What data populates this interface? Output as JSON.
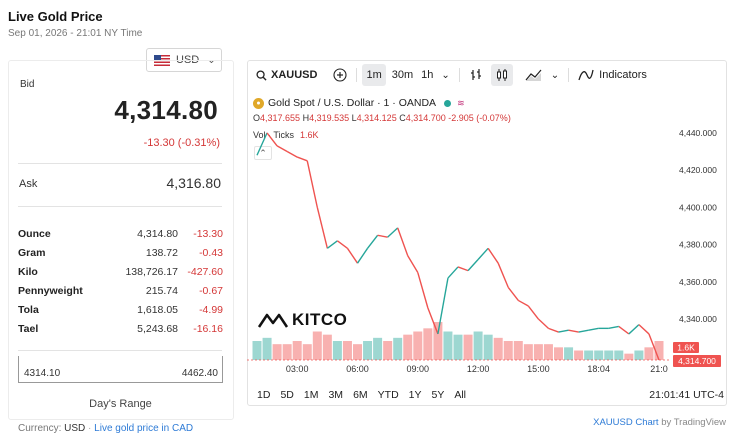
{
  "header": {
    "title": "Live Gold Price",
    "datetime": "Sep 01, 2026 - 21:01 NY Time",
    "currency": "USD"
  },
  "quote": {
    "bid_label": "Bid",
    "bid": "4,314.80",
    "change": "-13.30 (-0.31%)",
    "ask_label": "Ask",
    "ask": "4,316.80"
  },
  "units": [
    {
      "name": "Ounce",
      "price": "4,314.80",
      "change": "-13.30"
    },
    {
      "name": "Gram",
      "price": "138.72",
      "change": "-0.43"
    },
    {
      "name": "Kilo",
      "price": "138,726.17",
      "change": "-427.60"
    },
    {
      "name": "Pennyweight",
      "price": "215.74",
      "change": "-0.67"
    },
    {
      "name": "Tola",
      "price": "1,618.05",
      "change": "-4.99"
    },
    {
      "name": "Tael",
      "price": "5,243.68",
      "change": "-16.16"
    }
  ],
  "days_range": {
    "low": "4314.10",
    "high": "4462.40",
    "label": "Day's Range"
  },
  "footer": {
    "currency_label": "Currency:",
    "currency": "USD",
    "cad_link": "Live gold price in CAD"
  },
  "toolbar": {
    "symbol": "XAUUSD",
    "intervals": [
      "1m",
      "30m",
      "1h"
    ],
    "indicators": "Indicators"
  },
  "legend": {
    "title": "Gold Spot / U.S. Dollar · 1 · OANDA",
    "badge": "≋",
    "open_k": "O",
    "open": "4,317.655",
    "high_k": "H",
    "high": "4,319.535",
    "low_k": "L",
    "low": "4,314.125",
    "close_k": "C",
    "close": "4,314.700",
    "chg": "-2.905 (-0.07%)",
    "vol_label": "Vol · Ticks",
    "vol": "1.6K"
  },
  "colors": {
    "up": "#26a69a",
    "down": "#ef5350",
    "accent": "#d43737",
    "link": "#2e7bd6"
  },
  "chart_data": {
    "type": "line",
    "symbol": "XAUUSD",
    "yaxis_ticks": [
      "4,440.000",
      "4,420.000",
      "4,400.000",
      "4,380.000",
      "4,360.000",
      "4,340.000"
    ],
    "xaxis_ticks": [
      "03:00",
      "06:00",
      "09:00",
      "12:00",
      "15:00",
      "18:04",
      "21:0"
    ],
    "ylim": [
      4318,
      4448
    ],
    "price_label": "4,314.700",
    "volume_label": "1.6K",
    "x": [
      "01:00",
      "01:30",
      "02:00",
      "02:30",
      "03:00",
      "03:30",
      "04:00",
      "04:30",
      "05:00",
      "05:30",
      "06:00",
      "06:30",
      "07:00",
      "07:30",
      "08:00",
      "08:30",
      "09:00",
      "09:30",
      "10:00",
      "10:30",
      "11:00",
      "11:30",
      "12:00",
      "12:30",
      "13:00",
      "13:30",
      "14:00",
      "14:30",
      "15:00",
      "15:30",
      "16:00",
      "16:30",
      "17:00",
      "17:30",
      "18:00",
      "18:30",
      "19:00",
      "19:30",
      "20:00",
      "20:30",
      "21:00"
    ],
    "series": [
      {
        "values": [
          4428,
          4440,
          4433,
          4430,
          4427,
          4425,
          4400,
          4378,
          4382,
          4378,
          4370,
          4378,
          4385,
          4384,
          4389,
          4374,
          4365,
          4346,
          4332,
          4362,
          4368,
          4366,
          4372,
          4378,
          4370,
          4357,
          4350,
          4347,
          4340,
          4335,
          4333,
          4334,
          4333,
          4334,
          4335,
          4335,
          4336,
          4332,
          4337,
          4332,
          4318
        ]
      }
    ],
    "volume": [
      6,
      7,
      5,
      5,
      6,
      5,
      9,
      8,
      6,
      6,
      5,
      6,
      7,
      6,
      7,
      8,
      9,
      10,
      12,
      9,
      8,
      8,
      9,
      8,
      7,
      6,
      6,
      5,
      5,
      5,
      4,
      4,
      3,
      3,
      3,
      3,
      3,
      2,
      3,
      4,
      6
    ]
  },
  "range_tabs": [
    "1D",
    "5D",
    "1M",
    "3M",
    "6M",
    "YTD",
    "1Y",
    "5Y",
    "All"
  ],
  "chart_time": "21:01:41 UTC-4",
  "credit": {
    "link": "XAUUSD Chart",
    "by": "by TradingView"
  },
  "logo_text": "KITCO"
}
